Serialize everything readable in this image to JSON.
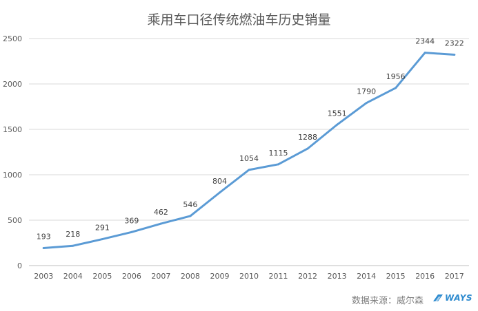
{
  "chart_data": {
    "type": "line",
    "title": "乘用车口径传统燃油车历史销量",
    "xlabel": "",
    "ylabel": "",
    "categories": [
      "2003",
      "2004",
      "2005",
      "2006",
      "2007",
      "2008",
      "2009",
      "2010",
      "2011",
      "2012",
      "2013",
      "2014",
      "2015",
      "2016",
      "2017"
    ],
    "values": [
      193,
      218,
      291,
      369,
      462,
      546,
      804,
      1054,
      1115,
      1288,
      1551,
      1790,
      1956,
      2344,
      2322
    ],
    "ylim": [
      0,
      2500
    ],
    "yticks": [
      0,
      500,
      1000,
      1500,
      2000,
      2500
    ],
    "grid": "horizontal",
    "line_color": "#5b9bd5",
    "grid_color": "#d9d9d9"
  },
  "footer": {
    "source": "数据来源：威尔森",
    "brand": "WAYS",
    "brand_color": "#2e8bcf"
  }
}
